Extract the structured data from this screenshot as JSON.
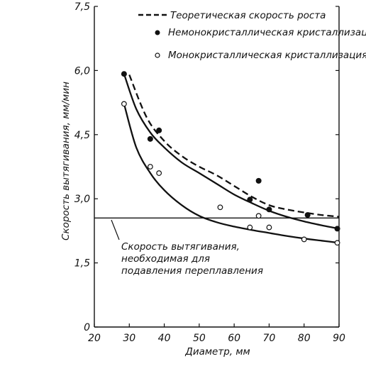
{
  "chart_data": {
    "type": "scatter",
    "xlabel": "Диаметр, мм",
    "ylabel": "Скорость вытягивания, мм/мин",
    "xlim": [
      20,
      90
    ],
    "ylim": [
      0,
      7.5
    ],
    "x_ticks": [
      "20",
      "30",
      "40",
      "50",
      "60",
      "70",
      "80",
      "90"
    ],
    "y_ticks": [
      "0",
      "1,5",
      "3,0",
      "4,5",
      "6,0",
      "7,5"
    ],
    "grid": false,
    "legend_position": "top-right",
    "legend": [
      "Теоретическая скорость роста",
      "Немонокристаллическая кристаллизация",
      "Монокристаллическая кристаллизация"
    ],
    "annotation_lines": [
      "Скорость вытягивания,",
      "необходимая для",
      "подавления переплавления"
    ],
    "reference_line_y": 2.55,
    "series": [
      {
        "name": "Теоретическая скорость роста",
        "kind": "dashed-curve",
        "x": [
          30,
          35,
          40,
          45,
          50,
          55,
          60,
          65,
          70,
          75,
          80,
          85,
          90
        ],
        "y": [
          5.9,
          4.9,
          4.35,
          4.0,
          3.75,
          3.55,
          3.3,
          3.05,
          2.85,
          2.75,
          2.68,
          2.62,
          2.58
        ]
      },
      {
        "name": "Немонокристаллическая кристаллизация",
        "kind": "filled-points",
        "x": [
          28.5,
          36,
          38.5,
          64.5,
          67,
          70,
          81,
          89.5
        ],
        "y": [
          5.92,
          4.4,
          4.6,
          2.98,
          3.42,
          2.75,
          2.62,
          2.3
        ],
        "fit_x": [
          28.5,
          32,
          36,
          40,
          45,
          50,
          55,
          60,
          65,
          70,
          75,
          80,
          85,
          90
        ],
        "fit_y": [
          5.92,
          5.1,
          4.55,
          4.2,
          3.85,
          3.6,
          3.35,
          3.1,
          2.9,
          2.72,
          2.58,
          2.47,
          2.38,
          2.3
        ]
      },
      {
        "name": "Монокристаллическая кристаллизация",
        "kind": "open-points",
        "x": [
          28.5,
          36,
          38.5,
          56,
          64.5,
          67,
          70,
          80,
          89.5
        ],
        "y": [
          5.22,
          3.75,
          3.6,
          2.8,
          2.33,
          2.6,
          2.33,
          2.05,
          1.97
        ],
        "fit_x": [
          28.5,
          32,
          36,
          40,
          45,
          50,
          55,
          60,
          65,
          70,
          75,
          80,
          85,
          90
        ],
        "fit_y": [
          5.22,
          4.2,
          3.6,
          3.2,
          2.85,
          2.6,
          2.45,
          2.35,
          2.27,
          2.2,
          2.13,
          2.07,
          2.02,
          1.97
        ]
      }
    ]
  }
}
